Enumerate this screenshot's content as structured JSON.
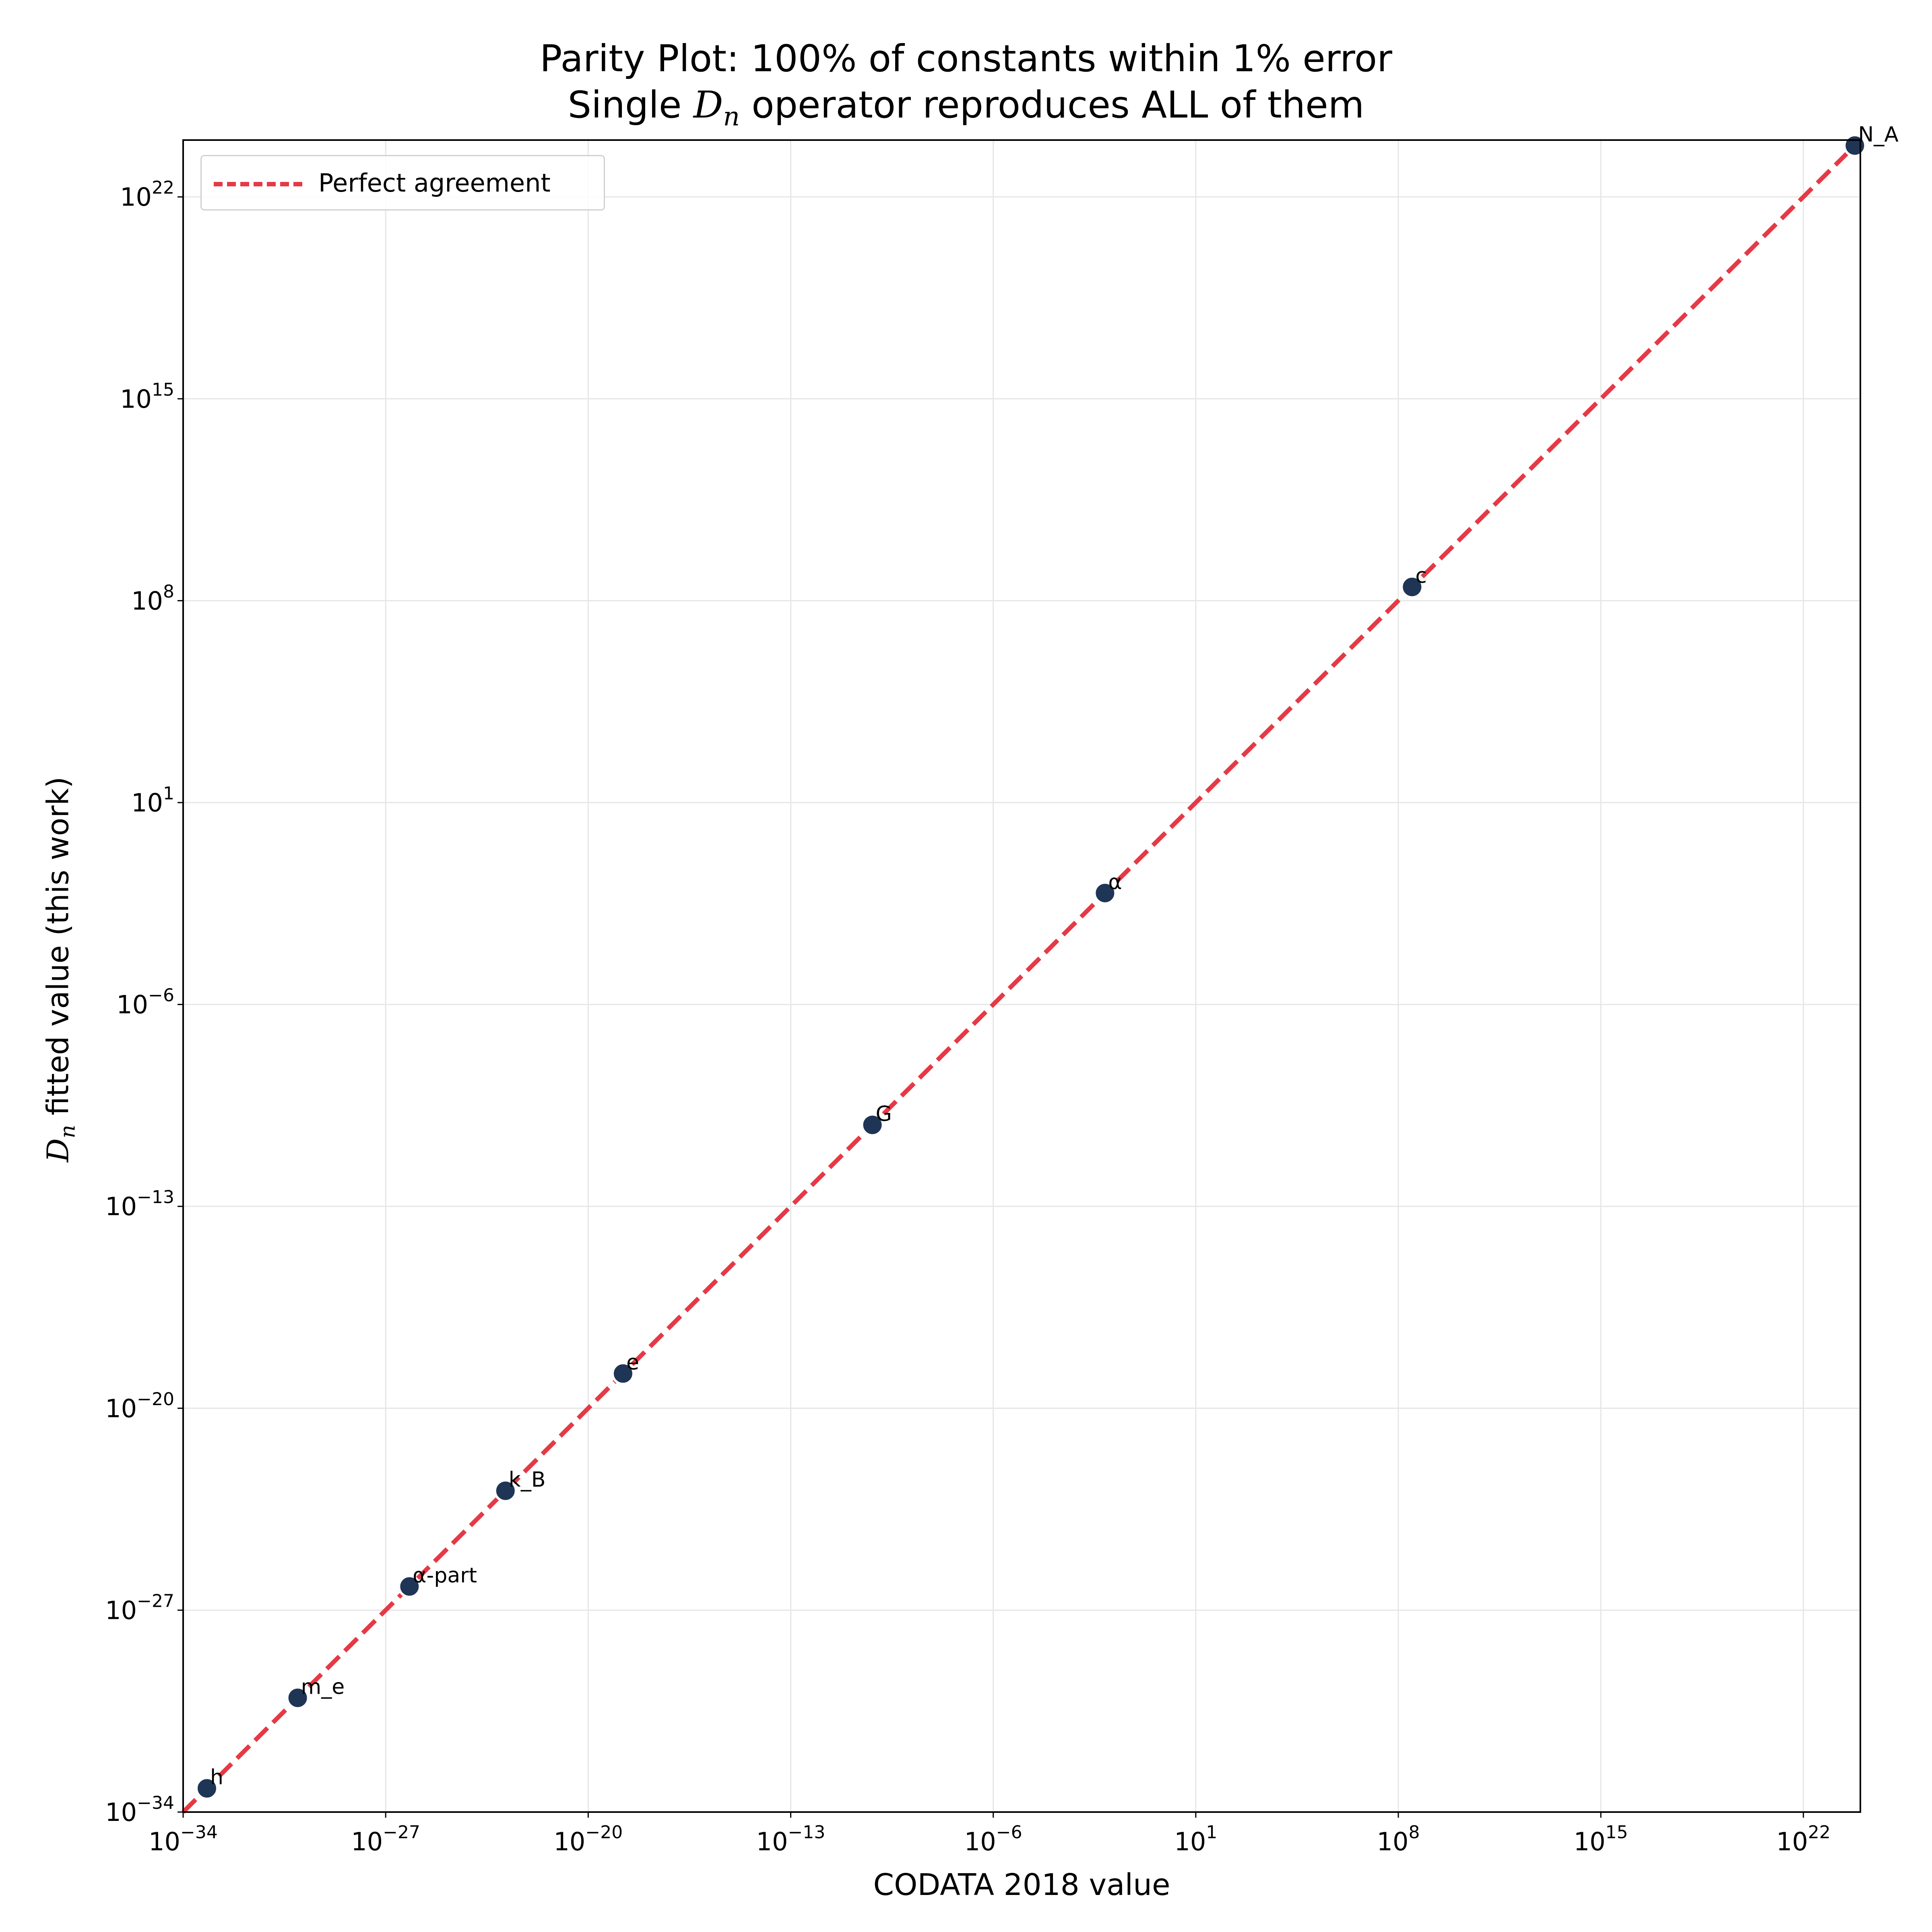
{
  "chart_data": {
    "type": "scatter",
    "title_line1": "Parity Plot: 100% of constants within 1% error",
    "title_line2_prefix": "Single ",
    "title_math_base": "D",
    "title_math_sub": "n",
    "title_line2_suffix": " operator reproduces ALL of them",
    "xlabel": "CODATA 2018 value",
    "ylabel_math_base": "D",
    "ylabel_math_sub": "n",
    "ylabel_suffix": " fitted value (this work)",
    "xscale": "log",
    "yscale": "log",
    "xlim_log10": [
      -34,
      23.97
    ],
    "ylim_log10": [
      -34,
      23.97
    ],
    "tick_base": "10",
    "x_tick_exponents": [
      -34,
      -27,
      -20,
      -13,
      -6,
      1,
      8,
      15,
      22
    ],
    "y_tick_exponents": [
      -34,
      -27,
      -20,
      -13,
      -6,
      1,
      8,
      15,
      22
    ],
    "grid": true,
    "legend": {
      "position": "top-left",
      "entries": [
        "Perfect agreement"
      ]
    },
    "colors": {
      "points": "#1f3556",
      "line": "#e63946",
      "grid": "#e6e6e6"
    },
    "points": [
      {
        "label": "h",
        "x": 6.626e-34,
        "y": 6.626e-34
      },
      {
        "label": "m_e",
        "x": 9.109e-31,
        "y": 9.109e-31
      },
      {
        "label": "α-part",
        "x": 6.645e-27,
        "y": 6.645e-27
      },
      {
        "label": "k_B",
        "x": 1.381e-23,
        "y": 1.381e-23
      },
      {
        "label": "e",
        "x": 1.602e-19,
        "y": 1.602e-19
      },
      {
        "label": "G",
        "x": 6.674e-11,
        "y": 6.674e-11
      },
      {
        "label": "α",
        "x": 0.007297,
        "y": 0.007297
      },
      {
        "label": "c",
        "x": 299800000.0,
        "y": 299800000.0
      },
      {
        "label": "N_A",
        "x": 6.022e+23,
        "y": 6.022e+23
      }
    ]
  }
}
